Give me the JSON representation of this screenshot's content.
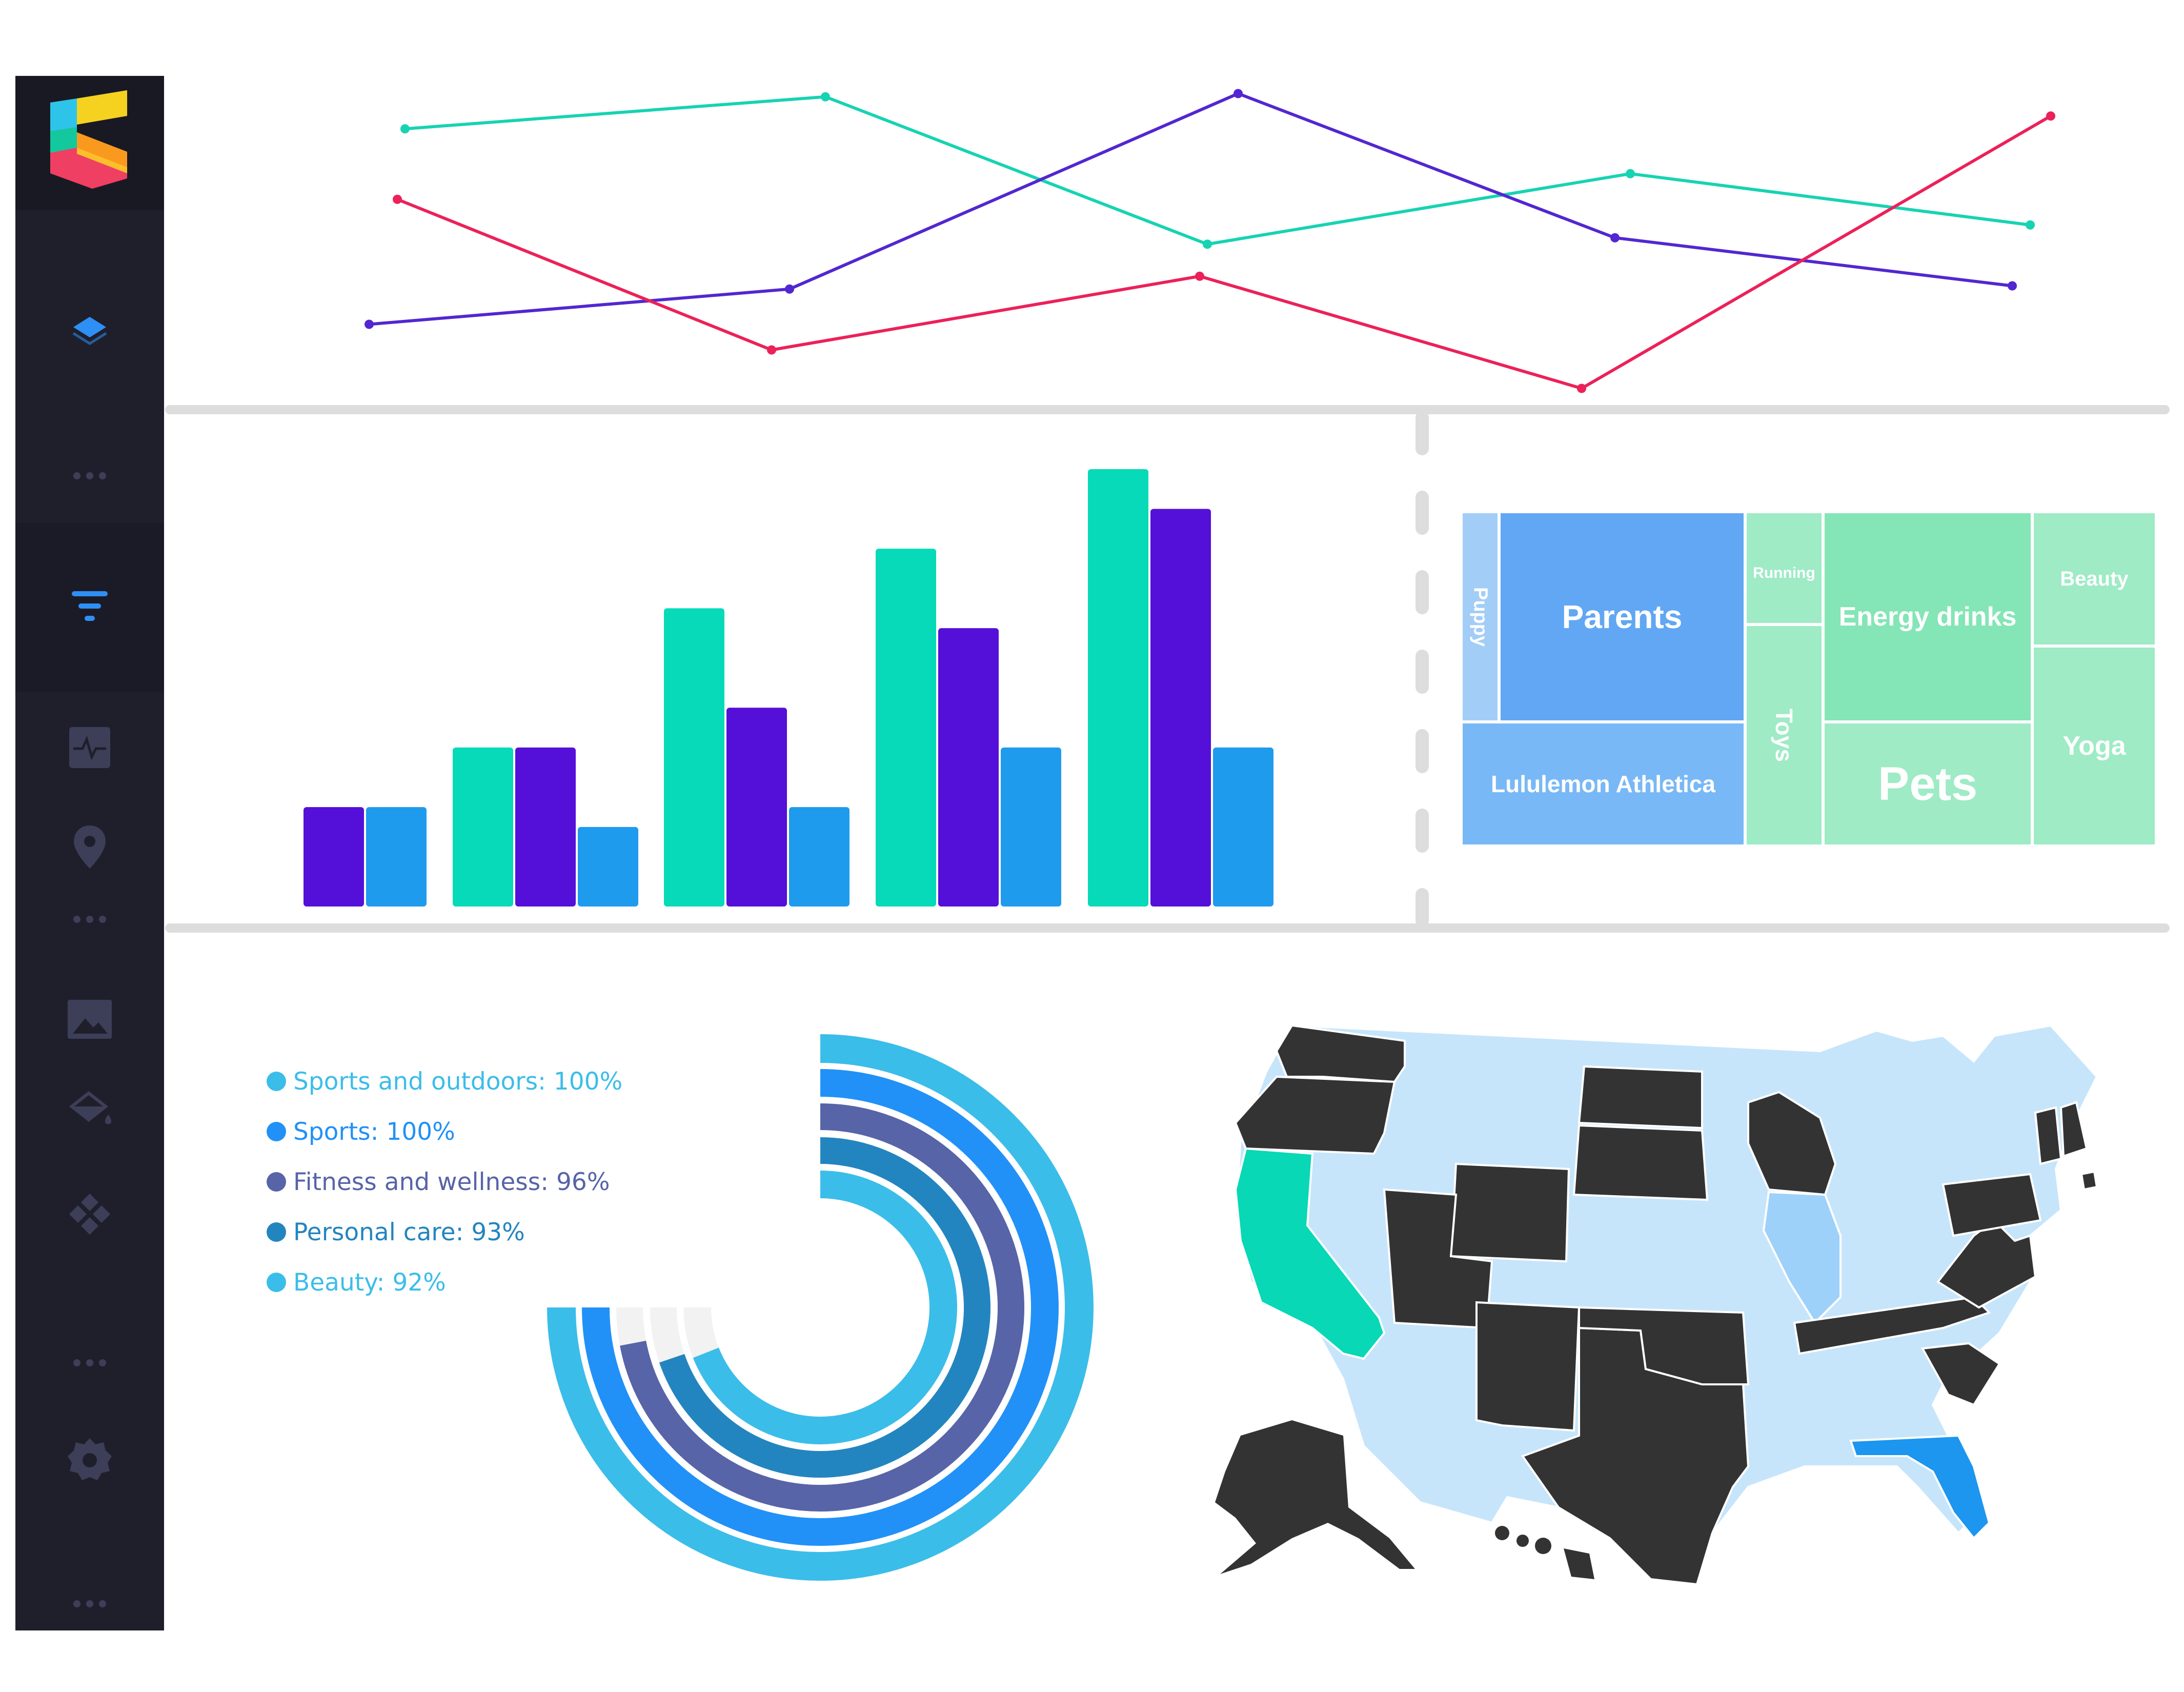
{
  "sidebar": {
    "items": [
      {
        "icon": "layers-icon",
        "active": true
      },
      {
        "icon": "more-icon"
      },
      {
        "icon": "filter-icon",
        "active": true
      },
      {
        "icon": "activity-icon"
      },
      {
        "icon": "location-pin-icon"
      },
      {
        "icon": "more-icon"
      },
      {
        "icon": "image-icon"
      },
      {
        "icon": "paint-bucket-icon"
      },
      {
        "icon": "components-icon"
      },
      {
        "icon": "more-icon"
      },
      {
        "icon": "settings-gear-icon"
      },
      {
        "icon": "more-icon"
      }
    ],
    "colors": {
      "bg": "#1f1f2c",
      "icon": "#3d3e58",
      "active": "#2e8ff5"
    }
  },
  "chart_data": [
    {
      "type": "line",
      "x": [
        1,
        2,
        3,
        4,
        5
      ],
      "series": [
        {
          "color": "#16d3b2",
          "values": [
            8.3,
            9.3,
            4.7,
            6.9,
            5.3
          ]
        },
        {
          "color": "#5227d0",
          "values": [
            2.2,
            3.3,
            9.4,
            4.9,
            3.4
          ]
        },
        {
          "color": "#ec2159",
          "values": [
            6.1,
            1.4,
            3.7,
            0.2,
            8.7
          ]
        }
      ],
      "ylim": [
        0,
        10
      ],
      "grid": false
    },
    {
      "type": "bar",
      "categories": [
        "",
        "",
        "",
        "",
        ""
      ],
      "series": [
        {
          "color": "#06dab8",
          "values": [
            0,
            4.0,
            7.5,
            9.0,
            11.0
          ]
        },
        {
          "color": "#5410d8",
          "values": [
            2.5,
            4.0,
            5.0,
            7.0,
            10.0
          ]
        },
        {
          "color": "#1e9bed",
          "values": [
            2.5,
            2.0,
            2.5,
            4.0,
            4.0
          ]
        }
      ],
      "ylim": [
        0,
        11
      ]
    },
    {
      "type": "heatmap",
      "cells": [
        {
          "label": "Puppy",
          "color": "#a2cdf7",
          "vertical": true
        },
        {
          "label": "Parents",
          "color": "#61a7f3"
        },
        {
          "label": "Lululemon Athletica",
          "color": "#79b8f6"
        },
        {
          "label": "Running",
          "color": "#9eebc6"
        },
        {
          "label": "Toys",
          "color": "#9eebc6",
          "vertical": true
        },
        {
          "label": "Energy drinks",
          "color": "#84e5b6"
        },
        {
          "label": "Pets",
          "color": "#9eebc6"
        },
        {
          "label": "Beauty",
          "color": "#9eebc6"
        },
        {
          "label": "Yoga",
          "color": "#9eebc6"
        }
      ]
    },
    {
      "type": "pie",
      "subtype": "radial-bar",
      "series": [
        {
          "name": "Sports and outdoors: 100%",
          "value": 100,
          "color": "#3bbde9"
        },
        {
          "name": "Sports: 100%",
          "value": 100,
          "color": "#2191f7"
        },
        {
          "name": "Fitness and wellness: 96%",
          "value": 96,
          "color": "#5764a8"
        },
        {
          "name": "Personal care: 93%",
          "value": 93,
          "color": "#2385bf"
        },
        {
          "name": "Beauty: 92%",
          "value": 92,
          "color": "#3bbde9"
        }
      ]
    }
  ],
  "map": {
    "colors": {
      "highlight": "#333333",
      "default": "#c6e5fb",
      "california": "#08d8b5",
      "florida": "#1c96ef",
      "illinois": "#9dd1fa"
    }
  }
}
